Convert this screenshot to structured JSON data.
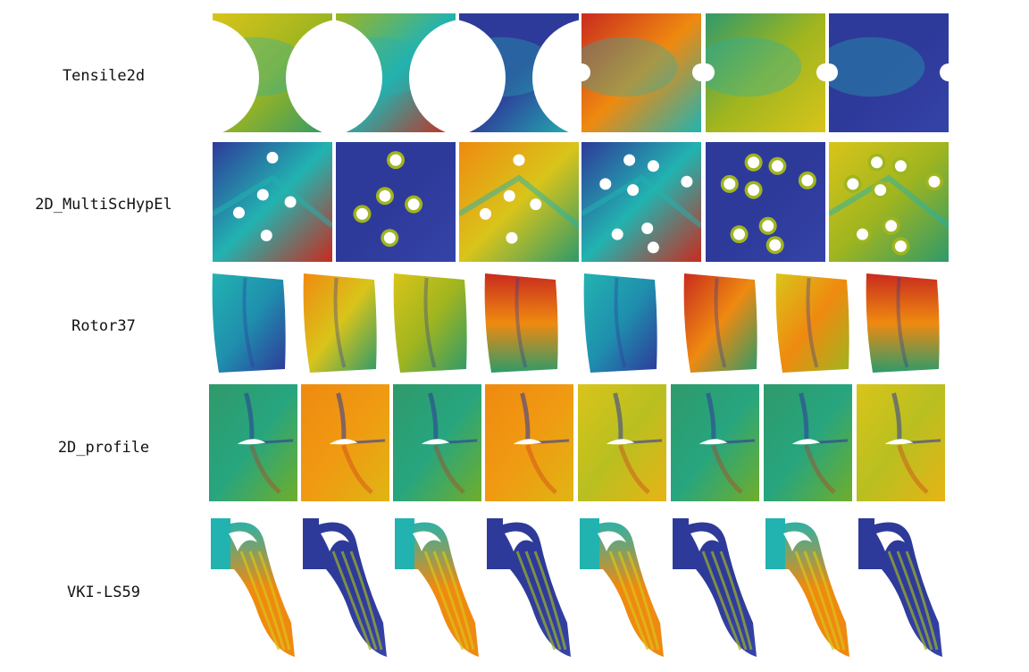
{
  "rows": [
    {
      "label": "Tensile2d",
      "fields": [
        "yellow-green",
        "green-red",
        "blue-cyan",
        "red-cyan",
        "green-yellow",
        "blue"
      ]
    },
    {
      "label": "2D_MultiScHypEl",
      "fields": [
        "red-blue",
        "blue",
        "orange-yellow",
        "red-blue",
        "blue",
        "yellow-green"
      ]
    },
    {
      "label": "Rotor37",
      "fields": [
        "cyan-blue",
        "orange-green",
        "yellow-green",
        "red-orange",
        "cyan-blue",
        "red-orange",
        "yellow-orange",
        "red-green"
      ]
    },
    {
      "label": "2D_profile",
      "fields": [
        "green",
        "orange",
        "green",
        "orange",
        "yellow",
        "green",
        "green",
        "yellow"
      ]
    },
    {
      "label": "VKI-LS59",
      "fields": [
        "cyan-orange",
        "blue",
        "cyan-orange",
        "blue",
        "cyan-orange",
        "blue",
        "cyan-orange",
        "blue"
      ]
    }
  ],
  "colors": {
    "dark_blue": "#2e3a9a",
    "cyan": "#22b3b0",
    "green": "#2f9a6a",
    "yellow_green": "#9fb51f",
    "yellow": "#d9c41a",
    "orange": "#ef8a10",
    "red": "#c92b1e"
  }
}
